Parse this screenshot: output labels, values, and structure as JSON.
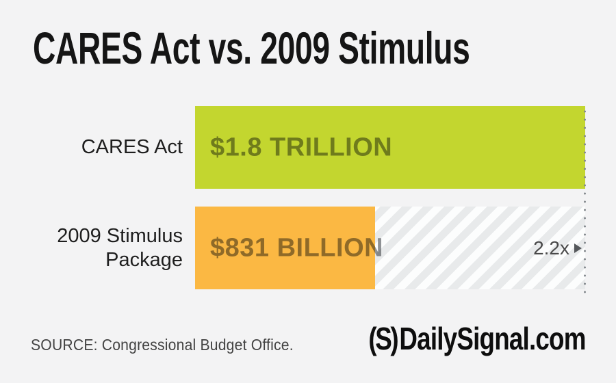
{
  "title": "CARES Act vs. 2009 Stimulus",
  "chart_data": {
    "type": "bar",
    "orientation": "horizontal",
    "title": "CARES Act vs. 2009 Stimulus",
    "categories": [
      "CARES Act",
      "2009 Stimulus Package"
    ],
    "values": [
      1800,
      831
    ],
    "value_labels": [
      "$1.8 TRILLION",
      "$831 BILLION"
    ],
    "units": "USD billions",
    "xlim": [
      0,
      1800
    ],
    "bar_colors": [
      "#c3d62f",
      "#fbb843"
    ],
    "annotation": {
      "text": "2.2x"
    },
    "reference_line": "dotted vertical line at CARES Act total",
    "legend": "none",
    "grid": "off"
  },
  "colors": {
    "background": "#f3f3f4",
    "title_text": "#151515",
    "label_text": "#1e1e1e",
    "value_text_multiply": "#919396",
    "hatch_dark": "#e8eaeb",
    "hatch_light": "#fcfdfd",
    "dotted_line": "#84898e",
    "annotation_text": "#4a4a4a",
    "source_text": "#424242",
    "brand_text": "#0e0e0e"
  },
  "footer": {
    "source": "SOURCE: Congressional Budget Office.",
    "brand_mark": "(S)",
    "brand_name": "DailySignal.com"
  }
}
